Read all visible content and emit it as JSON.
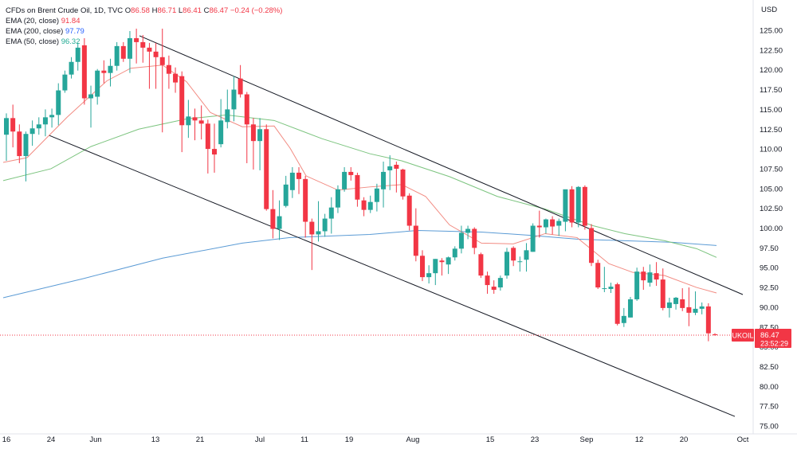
{
  "legend": {
    "symbol": "CFDs on Brent Crude Oil, 1D, TVC",
    "open_label": "O",
    "open": "86.58",
    "high_label": "H",
    "high": "86.71",
    "low_label": "L",
    "low": "86.41",
    "close_label": "C",
    "close": "86.47",
    "change": "−0.24 (−0.28%)",
    "ema20_label": "EMA (20, close)",
    "ema20_value": "91.84",
    "ema200_label": "EMA (200, close)",
    "ema200_value": "97.79",
    "ema50_label": "EMA (50, close)",
    "ema50_value": "96.32"
  },
  "price_axis": {
    "currency": "USD"
  },
  "current_price": {
    "ticker": "UKOIL",
    "price": "86.47",
    "countdown": "23:52:29"
  },
  "colors": {
    "up": "#26a69a",
    "down": "#f23645",
    "ema20": "#f28b82",
    "ema50": "#7cc47f",
    "ema200": "#5b9bd5",
    "channel": "#131722"
  },
  "chart_data": {
    "type": "candlestick",
    "title": "CFDs on Brent Crude Oil, 1D, TVC",
    "yrange": [
      75,
      126
    ],
    "yticks": [
      "75.00",
      "77.50",
      "80.00",
      "82.50",
      "85.00",
      "87.50",
      "90.00",
      "92.50",
      "95.00",
      "97.50",
      "100.00",
      "102.50",
      "105.00",
      "107.50",
      "110.00",
      "112.50",
      "115.00",
      "117.50",
      "120.00",
      "122.50",
      "125.00"
    ],
    "xticks": [
      {
        "label": "16",
        "x": "2022-05-16"
      },
      {
        "label": "24",
        "x": "2022-05-24"
      },
      {
        "label": "Jun",
        "x": "2022-06-01"
      },
      {
        "label": "13",
        "x": "2022-06-13"
      },
      {
        "label": "21",
        "x": "2022-06-21"
      },
      {
        "label": "Jul",
        "x": "2022-07-01"
      },
      {
        "label": "11",
        "x": "2022-07-11"
      },
      {
        "label": "19",
        "x": "2022-07-19"
      },
      {
        "label": "Aug",
        "x": "2022-08-01"
      },
      {
        "label": "15",
        "x": "2022-08-15"
      },
      {
        "label": "23",
        "x": "2022-08-23"
      },
      {
        "label": "Sep",
        "x": "2022-09-01"
      },
      {
        "label": "12",
        "x": "2022-09-12"
      },
      {
        "label": "20",
        "x": "2022-09-20"
      },
      {
        "label": "Oct",
        "x": "2022-10-03"
      }
    ],
    "candles": [
      {
        "x": "2022-05-16",
        "o": 111.8,
        "h": 114.5,
        "l": 108.5,
        "c": 113.9
      },
      {
        "x": "2022-05-17",
        "o": 113.9,
        "h": 115.6,
        "l": 110.2,
        "c": 112.2
      },
      {
        "x": "2022-05-18",
        "o": 112.2,
        "h": 113.1,
        "l": 108.2,
        "c": 109.1
      },
      {
        "x": "2022-05-19",
        "o": 109.1,
        "h": 112.2,
        "l": 105.9,
        "c": 111.9
      },
      {
        "x": "2022-05-20",
        "o": 111.9,
        "h": 113.6,
        "l": 110.4,
        "c": 112.6
      },
      {
        "x": "2022-05-23",
        "o": 112.6,
        "h": 114.0,
        "l": 111.8,
        "c": 113.1
      },
      {
        "x": "2022-05-24",
        "o": 113.1,
        "h": 115.0,
        "l": 111.6,
        "c": 114.0
      },
      {
        "x": "2022-05-25",
        "o": 114.0,
        "h": 115.1,
        "l": 112.7,
        "c": 114.3
      },
      {
        "x": "2022-05-26",
        "o": 114.3,
        "h": 118.3,
        "l": 113.0,
        "c": 117.4
      },
      {
        "x": "2022-05-27",
        "o": 117.4,
        "h": 119.9,
        "l": 117.1,
        "c": 119.4
      },
      {
        "x": "2022-05-30",
        "o": 119.4,
        "h": 121.6,
        "l": 118.9,
        "c": 121.0
      },
      {
        "x": "2022-05-31",
        "o": 121.0,
        "h": 123.4,
        "l": 119.9,
        "c": 122.8
      },
      {
        "x": "2022-06-01",
        "o": 123.1,
        "h": 124.0,
        "l": 115.6,
        "c": 116.4
      },
      {
        "x": "2022-06-02",
        "o": 116.4,
        "h": 118.0,
        "l": 112.7,
        "c": 116.9
      },
      {
        "x": "2022-06-03",
        "o": 116.6,
        "h": 120.1,
        "l": 115.6,
        "c": 119.9
      },
      {
        "x": "2022-06-06",
        "o": 119.9,
        "h": 121.2,
        "l": 118.3,
        "c": 119.6
      },
      {
        "x": "2022-06-07",
        "o": 119.6,
        "h": 121.4,
        "l": 117.9,
        "c": 120.5
      },
      {
        "x": "2022-06-08",
        "o": 120.5,
        "h": 123.5,
        "l": 119.9,
        "c": 123.0
      },
      {
        "x": "2022-06-09",
        "o": 123.0,
        "h": 123.5,
        "l": 121.0,
        "c": 121.4
      },
      {
        "x": "2022-06-10",
        "o": 121.4,
        "h": 124.9,
        "l": 119.6,
        "c": 124.0
      },
      {
        "x": "2022-06-13",
        "o": 124.0,
        "h": 125.2,
        "l": 120.8,
        "c": 123.5
      },
      {
        "x": "2022-06-14",
        "o": 123.5,
        "h": 124.4,
        "l": 120.9,
        "c": 122.8
      },
      {
        "x": "2022-06-15",
        "o": 122.8,
        "h": 123.4,
        "l": 117.6,
        "c": 122.3
      },
      {
        "x": "2022-06-16",
        "o": 122.3,
        "h": 123.4,
        "l": 117.6,
        "c": 121.6
      },
      {
        "x": "2022-06-17",
        "o": 121.6,
        "h": 125.2,
        "l": 112.1,
        "c": 120.6
      },
      {
        "x": "2022-06-20",
        "o": 120.6,
        "h": 121.8,
        "l": 117.6,
        "c": 119.5
      },
      {
        "x": "2022-06-21",
        "o": 119.5,
        "h": 120.3,
        "l": 117.1,
        "c": 118.4
      },
      {
        "x": "2022-06-22",
        "o": 119.2,
        "h": 119.8,
        "l": 109.6,
        "c": 113.0
      },
      {
        "x": "2022-06-23",
        "o": 113.0,
        "h": 116.2,
        "l": 111.4,
        "c": 114.1
      },
      {
        "x": "2022-06-24",
        "o": 114.0,
        "h": 115.1,
        "l": 111.1,
        "c": 113.6
      },
      {
        "x": "2022-06-27",
        "o": 113.6,
        "h": 115.5,
        "l": 111.2,
        "c": 113.2
      },
      {
        "x": "2022-06-28",
        "o": 113.2,
        "h": 113.7,
        "l": 106.9,
        "c": 110.0
      },
      {
        "x": "2022-06-29",
        "o": 110.0,
        "h": 113.2,
        "l": 107.0,
        "c": 109.3
      },
      {
        "x": "2022-06-30",
        "o": 110.6,
        "h": 116.3,
        "l": 110.2,
        "c": 113.6
      },
      {
        "x": "2022-07-01",
        "o": 113.4,
        "h": 117.5,
        "l": 112.6,
        "c": 115.0
      },
      {
        "x": "2022-07-04",
        "o": 115.0,
        "h": 119.2,
        "l": 113.5,
        "c": 117.5
      },
      {
        "x": "2022-07-05",
        "o": 118.9,
        "h": 120.6,
        "l": 116.5,
        "c": 116.9
      },
      {
        "x": "2022-07-06",
        "o": 116.9,
        "h": 117.2,
        "l": 108.2,
        "c": 113.1
      },
      {
        "x": "2022-07-07",
        "o": 113.1,
        "h": 113.9,
        "l": 107.4,
        "c": 111.0
      },
      {
        "x": "2022-07-08",
        "o": 111.0,
        "h": 113.9,
        "l": 107.3,
        "c": 112.5
      },
      {
        "x": "2022-07-11",
        "o": 112.5,
        "h": 113.1,
        "l": 102.2,
        "c": 102.4
      },
      {
        "x": "2022-07-12",
        "o": 102.4,
        "h": 104.8,
        "l": 98.7,
        "c": 99.9
      },
      {
        "x": "2022-07-13",
        "o": 99.9,
        "h": 103.5,
        "l": 98.5,
        "c": 101.5
      },
      {
        "x": "2022-07-14",
        "o": 102.8,
        "h": 106.6,
        "l": 102.6,
        "c": 105.5
      },
      {
        "x": "2022-07-15",
        "o": 104.8,
        "h": 107.7,
        "l": 103.8,
        "c": 107.0
      },
      {
        "x": "2022-07-18",
        "o": 107.0,
        "h": 107.7,
        "l": 104.3,
        "c": 106.2
      },
      {
        "x": "2022-07-19",
        "o": 106.2,
        "h": 106.6,
        "l": 98.8,
        "c": 100.8
      },
      {
        "x": "2022-07-20",
        "o": 100.8,
        "h": 101.2,
        "l": 94.7,
        "c": 99.2
      },
      {
        "x": "2022-07-21",
        "o": 99.2,
        "h": 103.4,
        "l": 98.3,
        "c": 99.6
      },
      {
        "x": "2022-07-22",
        "o": 99.6,
        "h": 101.8,
        "l": 98.9,
        "c": 101.2
      },
      {
        "x": "2022-07-25",
        "o": 101.2,
        "h": 103.9,
        "l": 99.3,
        "c": 102.6
      },
      {
        "x": "2022-07-26",
        "o": 102.6,
        "h": 105.4,
        "l": 101.9,
        "c": 104.9
      },
      {
        "x": "2022-07-27",
        "o": 104.9,
        "h": 107.7,
        "l": 104.6,
        "c": 107.1
      },
      {
        "x": "2022-07-28",
        "o": 107.1,
        "h": 107.7,
        "l": 106.0,
        "c": 106.7
      },
      {
        "x": "2022-07-29",
        "o": 106.7,
        "h": 107.0,
        "l": 102.7,
        "c": 103.6
      },
      {
        "x": "2022-08-01",
        "o": 103.5,
        "h": 103.9,
        "l": 101.5,
        "c": 102.3
      },
      {
        "x": "2022-08-02",
        "o": 102.3,
        "h": 104.1,
        "l": 101.9,
        "c": 103.3
      },
      {
        "x": "2022-08-03",
        "o": 103.3,
        "h": 105.6,
        "l": 102.1,
        "c": 105.0
      },
      {
        "x": "2022-08-04",
        "o": 104.9,
        "h": 108.4,
        "l": 102.6,
        "c": 107.1
      },
      {
        "x": "2022-08-05",
        "o": 107.3,
        "h": 109.2,
        "l": 104.8,
        "c": 107.8
      },
      {
        "x": "2022-08-08",
        "o": 108.0,
        "h": 108.4,
        "l": 104.5,
        "c": 107.5
      },
      {
        "x": "2022-08-09",
        "o": 107.4,
        "h": 107.5,
        "l": 103.6,
        "c": 104.0
      },
      {
        "x": "2022-08-10",
        "o": 104.1,
        "h": 104.4,
        "l": 99.7,
        "c": 100.3
      },
      {
        "x": "2022-08-11",
        "o": 100.3,
        "h": 102.5,
        "l": 95.8,
        "c": 96.5
      },
      {
        "x": "2022-08-12",
        "o": 96.5,
        "h": 97.2,
        "l": 93.3,
        "c": 93.8
      },
      {
        "x": "2022-08-15",
        "o": 93.8,
        "h": 95.3,
        "l": 93.0,
        "c": 94.3
      },
      {
        "x": "2022-08-16",
        "o": 94.3,
        "h": 96.1,
        "l": 92.8,
        "c": 96.1
      },
      {
        "x": "2022-08-17",
        "o": 95.9,
        "h": 96.2,
        "l": 94.0,
        "c": 95.7
      },
      {
        "x": "2022-08-18",
        "o": 95.4,
        "h": 96.4,
        "l": 94.2,
        "c": 96.3
      },
      {
        "x": "2022-08-19",
        "o": 96.3,
        "h": 97.7,
        "l": 95.9,
        "c": 97.4
      },
      {
        "x": "2022-08-22",
        "o": 97.4,
        "h": 100.3,
        "l": 96.8,
        "c": 99.4
      },
      {
        "x": "2022-08-23",
        "o": 99.4,
        "h": 100.3,
        "l": 98.6,
        "c": 99.9
      },
      {
        "x": "2022-08-24",
        "o": 99.9,
        "h": 100.1,
        "l": 96.7,
        "c": 97.5
      },
      {
        "x": "2022-08-25",
        "o": 96.7,
        "h": 96.9,
        "l": 93.7,
        "c": 94.0
      },
      {
        "x": "2022-08-26",
        "o": 94.0,
        "h": 94.5,
        "l": 91.7,
        "c": 92.8
      },
      {
        "x": "2022-08-29",
        "o": 92.6,
        "h": 93.4,
        "l": 91.7,
        "c": 92.2
      },
      {
        "x": "2022-08-30",
        "o": 92.5,
        "h": 94.0,
        "l": 92.1,
        "c": 93.7
      },
      {
        "x": "2022-08-31",
        "o": 94.0,
        "h": 97.5,
        "l": 93.6,
        "c": 97.0
      },
      {
        "x": "2022-09-01",
        "o": 97.5,
        "h": 97.7,
        "l": 95.2,
        "c": 95.9
      },
      {
        "x": "2022-09-02",
        "o": 95.8,
        "h": 96.4,
        "l": 94.5,
        "c": 95.8
      },
      {
        "x": "2022-09-05",
        "o": 96.0,
        "h": 98.1,
        "l": 94.5,
        "c": 97.2
      },
      {
        "x": "2022-09-06",
        "o": 97.0,
        "h": 100.6,
        "l": 97.0,
        "c": 100.3
      },
      {
        "x": "2022-09-07",
        "o": 100.3,
        "h": 102.2,
        "l": 98.8,
        "c": 100.1
      },
      {
        "x": "2022-09-08",
        "o": 100.1,
        "h": 101.2,
        "l": 99.3,
        "c": 101.1
      },
      {
        "x": "2022-09-09",
        "o": 101.1,
        "h": 101.5,
        "l": 99.2,
        "c": 100.2
      },
      {
        "x": "2022-09-12",
        "o": 100.3,
        "h": 101.2,
        "l": 99.0,
        "c": 100.9
      },
      {
        "x": "2022-09-13",
        "o": 100.8,
        "h": 104.8,
        "l": 99.6,
        "c": 104.9
      },
      {
        "x": "2022-09-14",
        "o": 104.9,
        "h": 105.3,
        "l": 100.1,
        "c": 100.7
      },
      {
        "x": "2022-09-15",
        "o": 100.7,
        "h": 105.3,
        "l": 100.1,
        "c": 105.2
      },
      {
        "x": "2022-09-16",
        "o": 105.2,
        "h": 105.4,
        "l": 99.8,
        "c": 100.3
      },
      {
        "x": "2022-09-19",
        "o": 100.0,
        "h": 100.5,
        "l": 95.2,
        "c": 95.6
      },
      {
        "x": "2022-09-20",
        "o": 95.6,
        "h": 96.0,
        "l": 92.3,
        "c": 92.5
      },
      {
        "x": "2022-09-21",
        "o": 92.4,
        "h": 95.1,
        "l": 91.9,
        "c": 92.4
      },
      {
        "x": "2022-09-22",
        "o": 92.3,
        "h": 93.1,
        "l": 91.8,
        "c": 92.6
      },
      {
        "x": "2022-09-23",
        "o": 92.9,
        "h": 93.1,
        "l": 87.7,
        "c": 87.9
      },
      {
        "x": "2022-09-26",
        "o": 88.0,
        "h": 89.9,
        "l": 87.5,
        "c": 88.9
      },
      {
        "x": "2022-09-27",
        "o": 88.7,
        "h": 91.3,
        "l": 88.7,
        "c": 91.0
      },
      {
        "x": "2022-09-28",
        "o": 91.0,
        "h": 95.0,
        "l": 90.8,
        "c": 94.5
      },
      {
        "x": "2022-09-29",
        "o": 94.5,
        "h": 95.1,
        "l": 92.2,
        "c": 93.4
      },
      {
        "x": "2022-09-30",
        "o": 93.1,
        "h": 95.4,
        "l": 92.6,
        "c": 94.4
      },
      {
        "x": "2022-10-03",
        "o": 94.3,
        "h": 95.7,
        "l": 92.7,
        "c": 93.5
      },
      {
        "x": "2022-10-04",
        "o": 93.5,
        "h": 94.9,
        "l": 89.6,
        "c": 89.9
      },
      {
        "x": "2022-10-05",
        "o": 89.9,
        "h": 91.2,
        "l": 88.7,
        "c": 90.6
      },
      {
        "x": "2022-10-06",
        "o": 90.4,
        "h": 91.3,
        "l": 89.7,
        "c": 91.2
      },
      {
        "x": "2022-10-07",
        "o": 91.0,
        "h": 92.4,
        "l": 89.5,
        "c": 89.9
      },
      {
        "x": "2022-10-10",
        "o": 90.0,
        "h": 92.5,
        "l": 87.6,
        "c": 89.3
      },
      {
        "x": "2022-10-11",
        "o": 89.3,
        "h": 92.0,
        "l": 89.0,
        "c": 89.8
      },
      {
        "x": "2022-10-12",
        "o": 89.8,
        "h": 90.6,
        "l": 89.1,
        "c": 90.1
      },
      {
        "x": "2022-10-13",
        "o": 90.1,
        "h": 90.5,
        "l": 85.7,
        "c": 86.7
      },
      {
        "x": "2022-10-14",
        "o": 86.58,
        "h": 86.71,
        "l": 86.41,
        "c": 86.47
      }
    ],
    "ema20": [
      [
        0,
        108.3
      ],
      [
        30,
        108.9
      ],
      [
        80,
        114.0
      ],
      [
        130,
        118.6
      ],
      [
        160,
        120.2
      ],
      [
        200,
        120.6
      ],
      [
        230,
        118.5
      ],
      [
        260,
        114.6
      ],
      [
        300,
        112.8
      ],
      [
        340,
        112.9
      ],
      [
        360,
        110.1
      ],
      [
        380,
        106.6
      ],
      [
        420,
        104.8
      ],
      [
        460,
        105.2
      ],
      [
        500,
        105.5
      ],
      [
        530,
        104.0
      ],
      [
        560,
        100.4
      ],
      [
        600,
        98.1
      ],
      [
        640,
        98.0
      ],
      [
        680,
        99.3
      ],
      [
        720,
        98.8
      ],
      [
        760,
        95.5
      ],
      [
        790,
        94.4
      ],
      [
        830,
        94.0
      ],
      [
        870,
        92.5
      ],
      [
        895,
        91.8
      ]
    ],
    "ema50": [
      [
        0,
        106.0
      ],
      [
        60,
        107.5
      ],
      [
        110,
        110.3
      ],
      [
        170,
        112.5
      ],
      [
        230,
        113.8
      ],
      [
        280,
        114.3
      ],
      [
        340,
        113.6
      ],
      [
        400,
        111.3
      ],
      [
        460,
        109.4
      ],
      [
        500,
        108.5
      ],
      [
        560,
        106.5
      ],
      [
        620,
        104.0
      ],
      [
        680,
        102.4
      ],
      [
        740,
        100.3
      ],
      [
        780,
        99.3
      ],
      [
        830,
        98.4
      ],
      [
        870,
        97.4
      ],
      [
        895,
        96.3
      ]
    ],
    "ema200": [
      [
        0,
        91.2
      ],
      [
        100,
        93.6
      ],
      [
        200,
        96.2
      ],
      [
        300,
        98.1
      ],
      [
        360,
        98.8
      ],
      [
        460,
        99.2
      ],
      [
        520,
        99.7
      ],
      [
        600,
        99.5
      ],
      [
        660,
        99.1
      ],
      [
        720,
        98.6
      ],
      [
        780,
        98.4
      ],
      [
        840,
        98.2
      ],
      [
        895,
        97.8
      ]
    ],
    "channel_upper": [
      [
        175,
        124.3
      ],
      [
        932,
        91.6
      ]
    ],
    "channel_lower": [
      [
        62,
        111.7
      ],
      [
        922,
        76.2
      ]
    ]
  }
}
